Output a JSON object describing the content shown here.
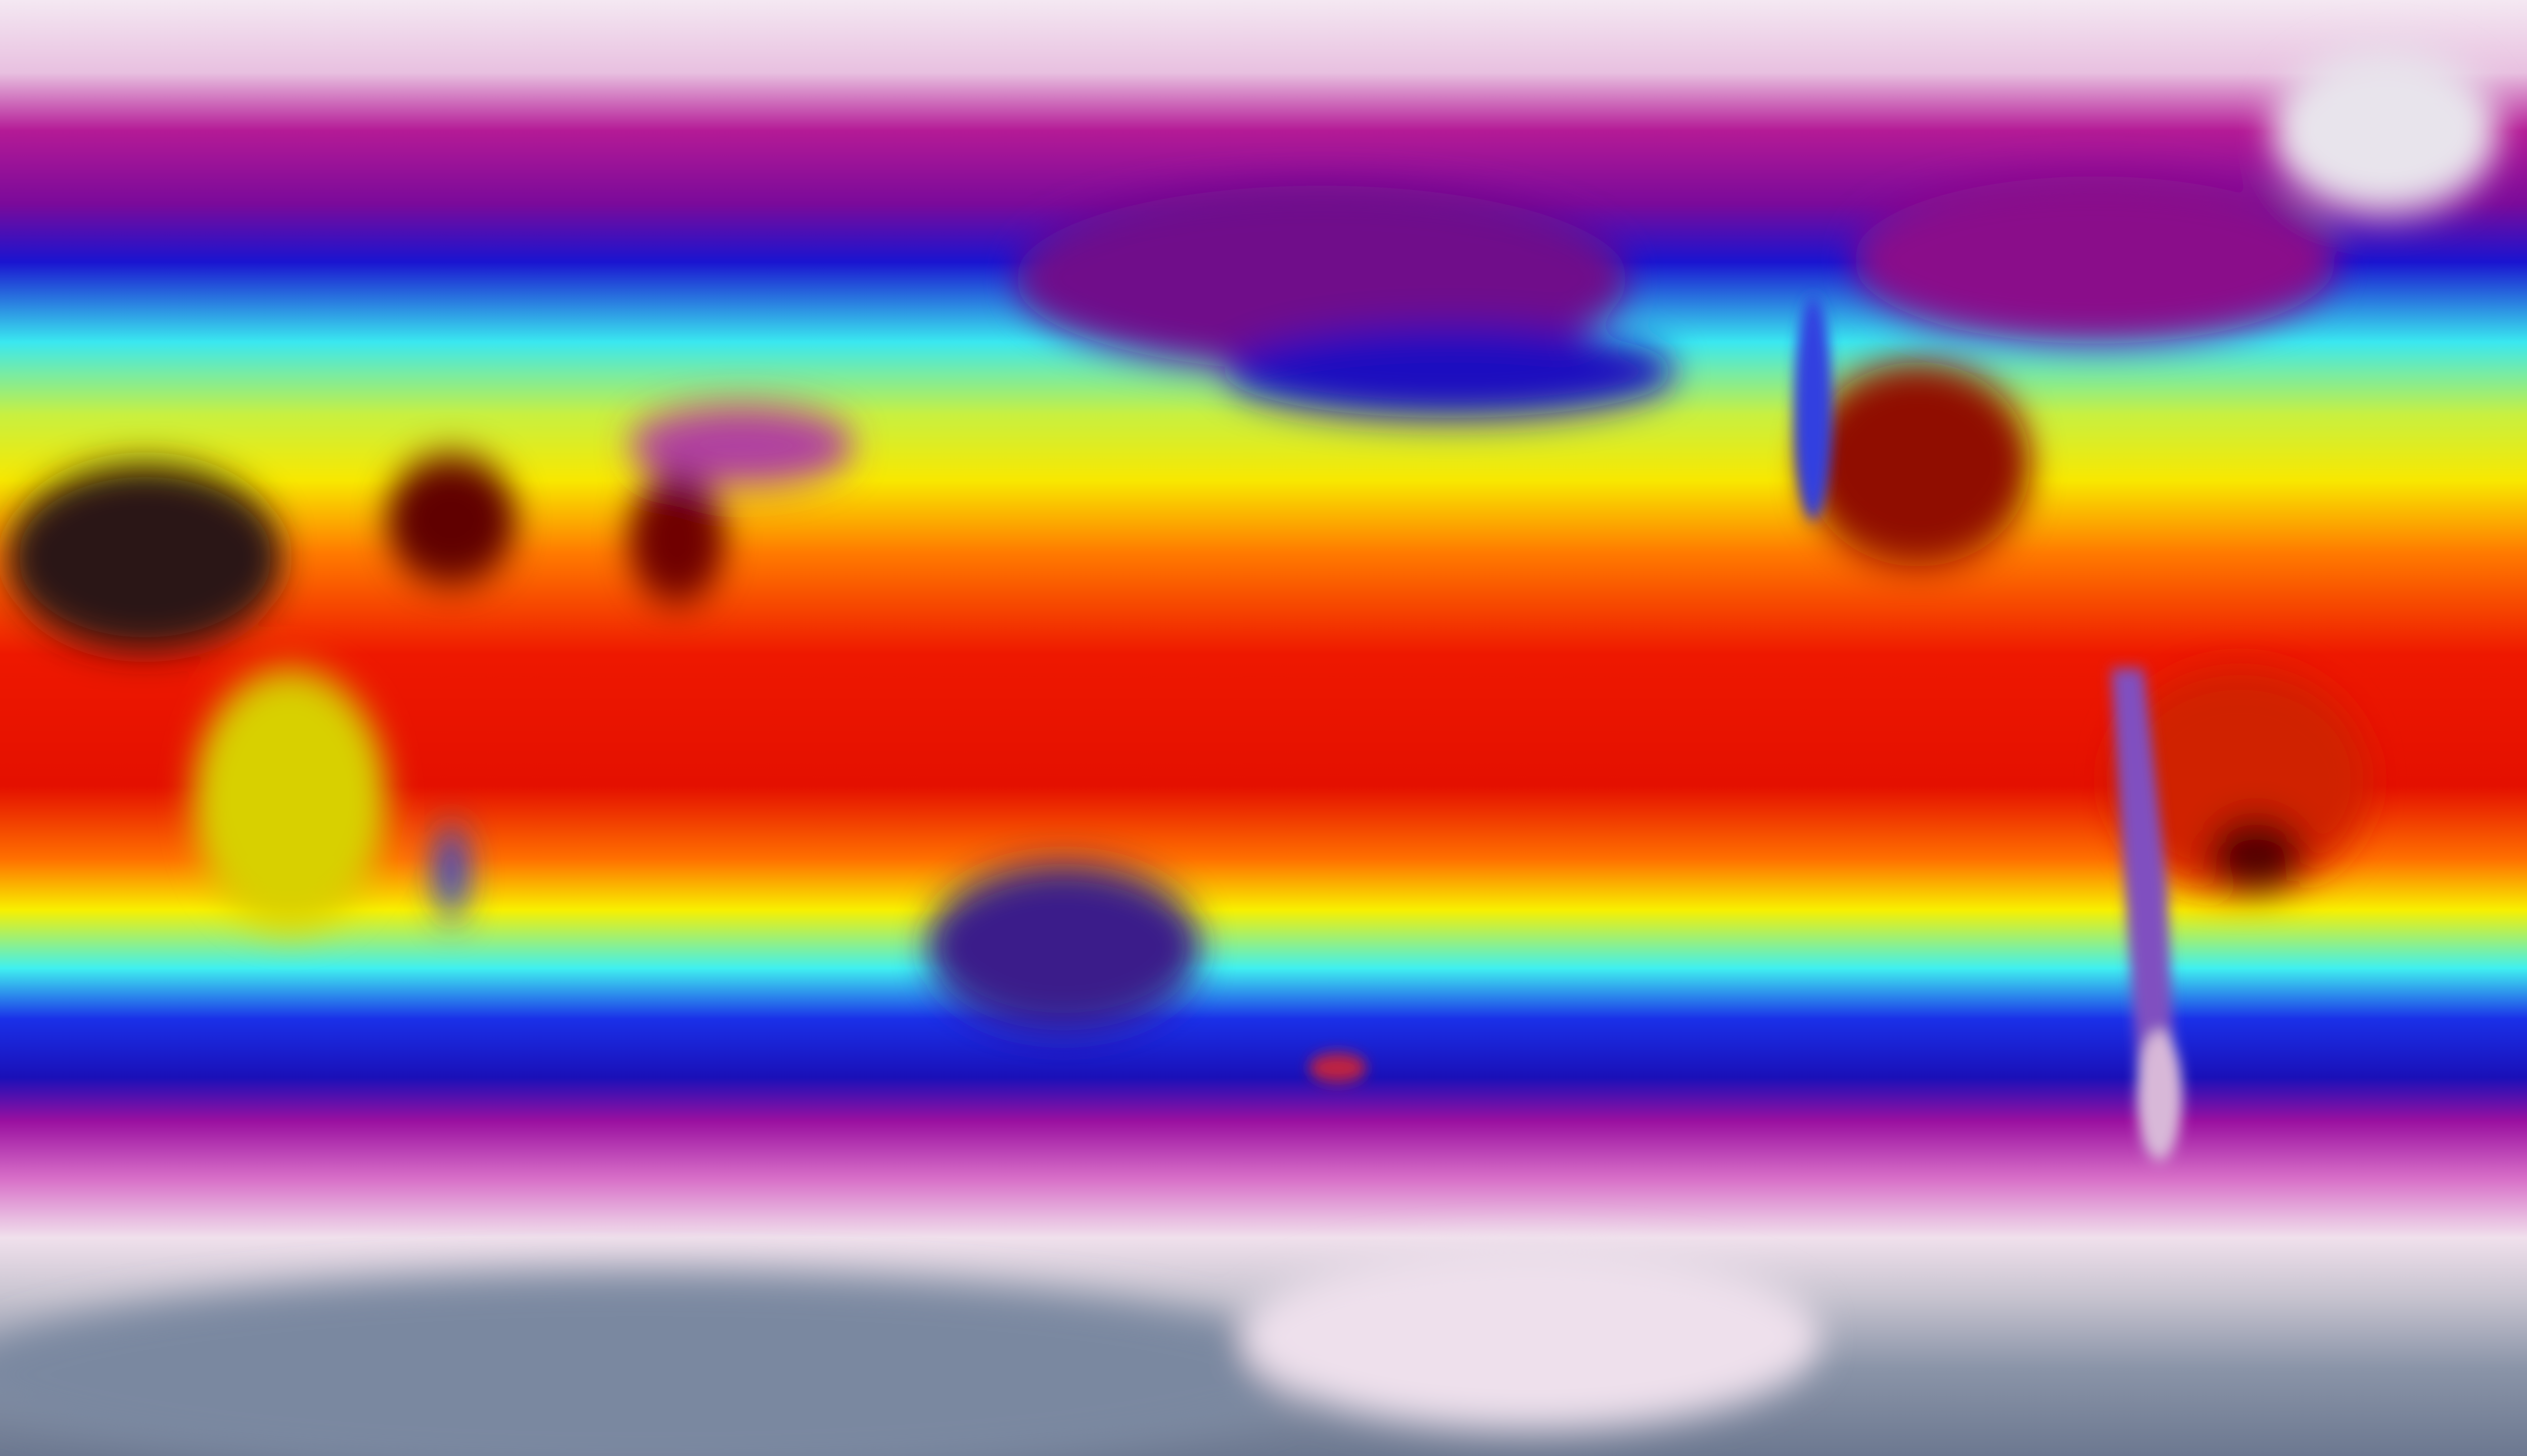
{
  "map": {
    "projection": "equirectangular",
    "colormap": {
      "polar_gray": "#7a869c",
      "cold_white": "#eddcea",
      "magenta": "#b0108f",
      "blue": "#1010d0",
      "cyan": "#40f0f0",
      "yellow": "#f8f000",
      "orange": "#ff8000",
      "red": "#e81000",
      "dark_red": "#600000",
      "hot_black": "#222222"
    }
  }
}
